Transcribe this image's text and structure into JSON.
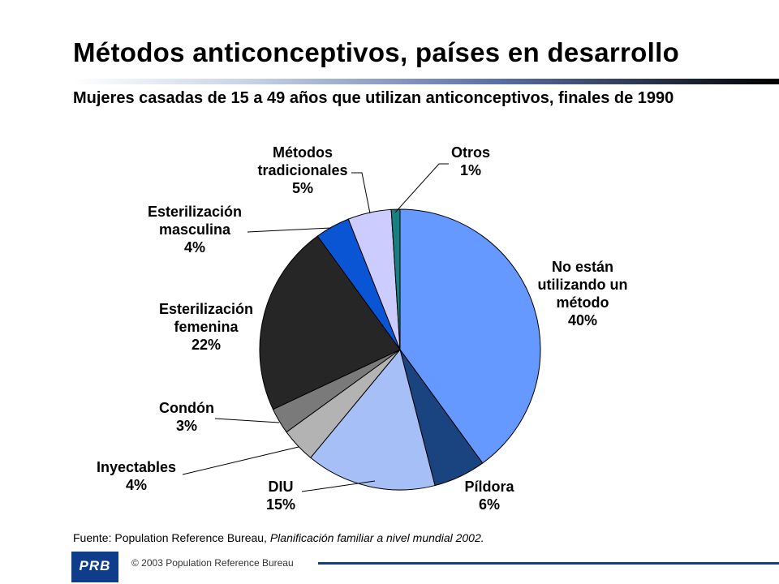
{
  "header": {
    "title": "Métodos anticonceptivos, países en desarrollo",
    "subtitle": "Mujeres casadas de 15 a 49 años que utilizan anticonceptivos, finales de 1990"
  },
  "chart_data": {
    "type": "pie",
    "title": "",
    "slices": [
      {
        "label_lines": [
          "No están",
          "utilizando un",
          "método"
        ],
        "value_label": "40%",
        "value": 40,
        "color": "#6699ff"
      },
      {
        "label_lines": [
          "Píldora"
        ],
        "value_label": "6%",
        "value": 6,
        "color": "#1a4480"
      },
      {
        "label_lines": [
          "DIU"
        ],
        "value_label": "15%",
        "value": 15,
        "color": "#a6bff7"
      },
      {
        "label_lines": [
          "Inyectables"
        ],
        "value_label": "4%",
        "value": 4,
        "color": "#b3b3b3"
      },
      {
        "label_lines": [
          "Condón"
        ],
        "value_label": "3%",
        "value": 3,
        "color": "#7a7a7a"
      },
      {
        "label_lines": [
          "Esterilización",
          "femenina"
        ],
        "value_label": "22%",
        "value": 22,
        "color": "#262626"
      },
      {
        "label_lines": [
          "Esterilización",
          "masculina"
        ],
        "value_label": "4%",
        "value": 4,
        "color": "#0a55d4"
      },
      {
        "label_lines": [
          "Métodos",
          "tradicionales"
        ],
        "value_label": "5%",
        "value": 5,
        "color": "#ccccff"
      },
      {
        "label_lines": [
          "Otros"
        ],
        "value_label": "1%",
        "value": 1,
        "color": "#1a7f7f"
      }
    ]
  },
  "footer": {
    "source_prefix": "Fuente: Population Reference Bureau, ",
    "source_italic": "Planificación familiar a nivel mundial 2002.",
    "logo_text": "PRB",
    "copyright": "© 2003  Population Reference Bureau"
  }
}
